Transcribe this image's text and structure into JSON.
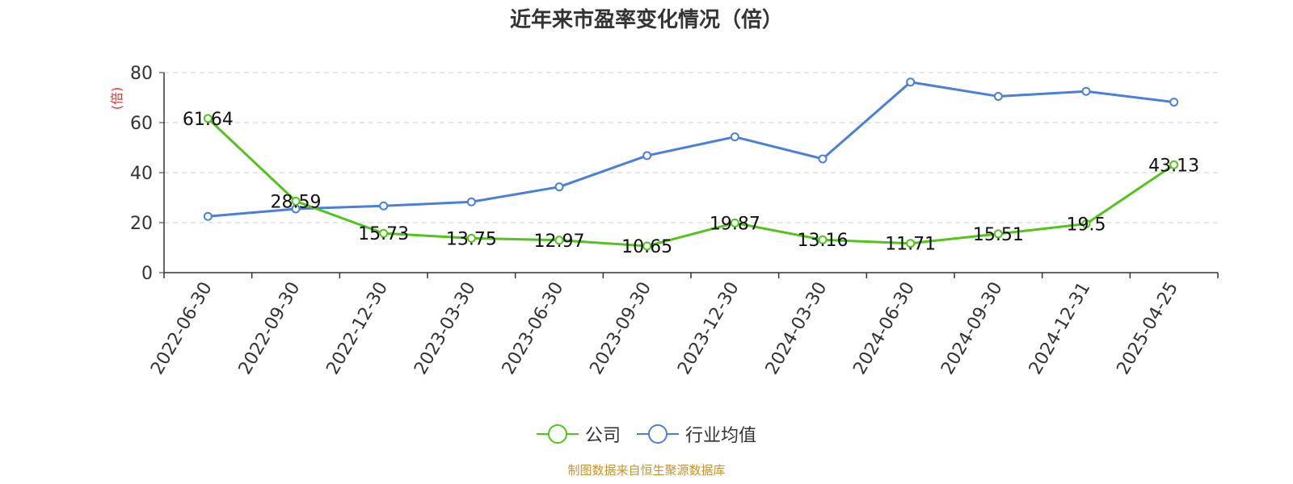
{
  "title": "近年来市盈率变化情况（倍）",
  "source_note": "制图数据来自恒生聚源数据库",
  "colors": {
    "company": "#52c41a",
    "industry": "#4a7fdc",
    "ylabel": "#e5322d",
    "text": "#333333",
    "grid": "#cccccc"
  },
  "chart_data": {
    "type": "line",
    "title": "近年来市盈率变化情况（倍）",
    "ylabel": "(倍)",
    "xlabel": "",
    "ylim": [
      0,
      80
    ],
    "yticks": [
      0,
      20,
      40,
      60,
      80
    ],
    "grid": true,
    "legend_position": "bottom",
    "categories": [
      "2022-06-30",
      "2022-09-30",
      "2022-12-30",
      "2023-03-30",
      "2023-06-30",
      "2023-09-30",
      "2023-12-30",
      "2024-03-30",
      "2024-06-30",
      "2024-09-30",
      "2024-12-31",
      "2025-04-25"
    ],
    "series": [
      {
        "name": "公司",
        "values": [
          61.64,
          28.59,
          15.73,
          13.75,
          12.97,
          10.65,
          19.87,
          13.16,
          11.71,
          15.51,
          19.5,
          43.13
        ],
        "data_labels": [
          "61.64",
          "28.59",
          "15.73",
          "13.75",
          "12.97",
          "10.65",
          "19.87",
          "13.16",
          "11.71",
          "15.51",
          "19.5",
          "43.13"
        ]
      },
      {
        "name": "行业均值",
        "values": [
          22.5,
          25.5,
          26.7,
          28.3,
          34.3,
          46.8,
          54.3,
          45.5,
          76.2,
          70.5,
          72.5,
          68.2
        ]
      }
    ]
  }
}
